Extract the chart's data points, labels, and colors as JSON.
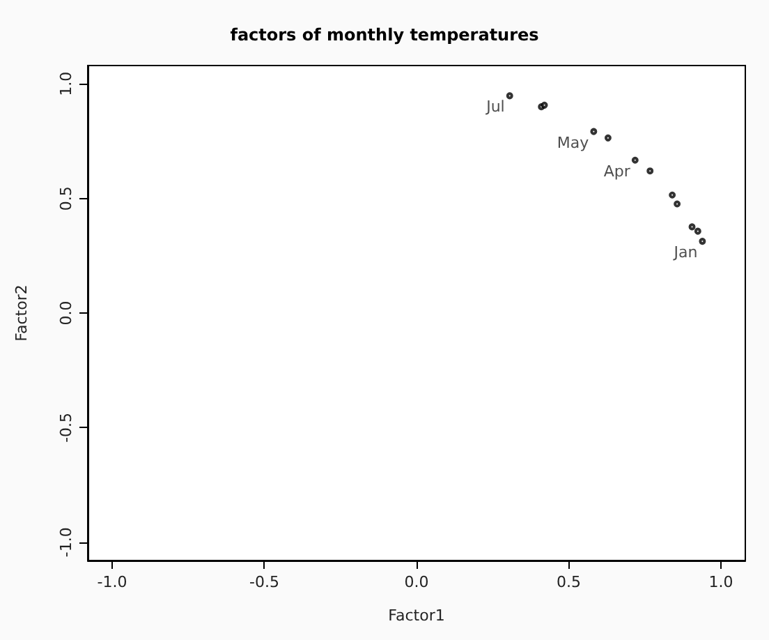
{
  "chart_data": {
    "type": "scatter",
    "title": "factors of monthly temperatures",
    "xlabel": "Factor1",
    "ylabel": "Factor2",
    "x": [
      0.306,
      0.41,
      0.42,
      0.582,
      0.629,
      0.718,
      0.767,
      0.84,
      0.856,
      0.905,
      0.924,
      0.939
    ],
    "series": [
      {
        "color": "#000000",
        "values": [
          0.948,
          0.9,
          0.907,
          0.792,
          0.764,
          0.667,
          0.62,
          0.515,
          0.476,
          0.376,
          0.357,
          0.313
        ],
        "value_labels": [
          "Jul",
          null,
          null,
          "May",
          null,
          "Apr",
          null,
          null,
          null,
          null,
          null,
          "Jan"
        ]
      }
    ],
    "xlim": [
      -1.08,
      1.08
    ],
    "xticks": [
      {
        "value": -1,
        "label": "-1.0"
      },
      -0.5,
      {
        "value": 0,
        "label": "0.0"
      },
      0.5,
      {
        "value": 1,
        "label": "1.0"
      }
    ],
    "ylim": [
      -1.08,
      1.08
    ],
    "yticks": [
      {
        "value": -1,
        "label": "-1.0"
      },
      -0.5,
      {
        "value": 0,
        "label": "0.0"
      },
      0.5,
      {
        "value": 1,
        "label": "1.0"
      }
    ],
    "marker": "circle",
    "grid": false
  }
}
